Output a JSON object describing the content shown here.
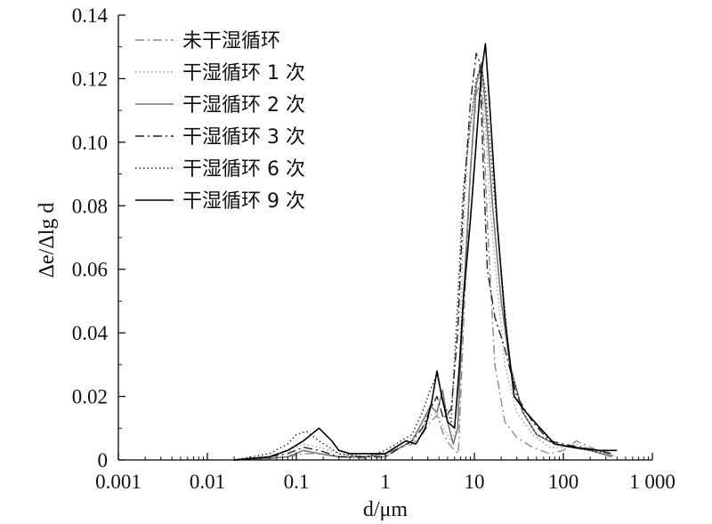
{
  "chart_data": {
    "type": "line",
    "title": "",
    "xlabel": "d/μm",
    "ylabel": "Δe/Δlg d",
    "x_scale": "log",
    "xlim": [
      0.001,
      1000
    ],
    "ylim": [
      0,
      0.14
    ],
    "x_ticks": [
      0.001,
      0.01,
      0.1,
      1,
      10,
      100,
      1000
    ],
    "x_tick_labels": [
      "0.001",
      "0.01",
      "0.1",
      "1",
      "10",
      "100",
      "1 000"
    ],
    "y_ticks": [
      0,
      0.02,
      0.04,
      0.06,
      0.08,
      0.1,
      0.12,
      0.14
    ],
    "y_tick_labels": [
      "0",
      "0.02",
      "0.04",
      "0.06",
      "0.08",
      "0.10",
      "0.12",
      "0.14"
    ],
    "grid": false,
    "legend_position": "top-left",
    "series": [
      {
        "name": "未干湿循环",
        "color": "#8a8a8a",
        "dash": "dashdot",
        "points": [
          [
            0.02,
            0
          ],
          [
            0.05,
            0.0005
          ],
          [
            0.08,
            0.001
          ],
          [
            0.12,
            0.002
          ],
          [
            0.18,
            0.002
          ],
          [
            0.3,
            0.001
          ],
          [
            0.6,
            0.0005
          ],
          [
            1.0,
            0.001
          ],
          [
            1.5,
            0.004
          ],
          [
            2.0,
            0.005
          ],
          [
            2.6,
            0.008
          ],
          [
            3.2,
            0.012
          ],
          [
            3.8,
            0.014
          ],
          [
            4.5,
            0.008
          ],
          [
            5.2,
            0.005
          ],
          [
            6.0,
            0.003
          ],
          [
            6.6,
            0.002
          ],
          [
            7.5,
            0.04
          ],
          [
            9,
            0.09
          ],
          [
            10.5,
            0.115
          ],
          [
            12,
            0.12
          ],
          [
            14,
            0.075
          ],
          [
            17,
            0.03
          ],
          [
            22,
            0.012
          ],
          [
            30,
            0.007
          ],
          [
            45,
            0.004
          ],
          [
            70,
            0.002
          ],
          [
            100,
            0.003
          ],
          [
            140,
            0.006
          ],
          [
            200,
            0.004
          ],
          [
            300,
            0.002
          ],
          [
            400,
            0.001
          ]
        ]
      },
      {
        "name": "干湿循环 1 次",
        "color": "#999999",
        "dash": "dot",
        "points": [
          [
            0.02,
            0
          ],
          [
            0.05,
            0.001
          ],
          [
            0.08,
            0.003
          ],
          [
            0.12,
            0.005
          ],
          [
            0.18,
            0.004
          ],
          [
            0.3,
            0.002
          ],
          [
            0.6,
            0.001
          ],
          [
            1.0,
            0.002
          ],
          [
            1.5,
            0.005
          ],
          [
            2.0,
            0.007
          ],
          [
            2.6,
            0.01
          ],
          [
            3.2,
            0.014
          ],
          [
            3.8,
            0.015
          ],
          [
            4.5,
            0.01
          ],
          [
            5.5,
            0.006
          ],
          [
            6.5,
            0.01
          ],
          [
            7.5,
            0.07
          ],
          [
            8.5,
            0.1
          ],
          [
            10,
            0.115
          ],
          [
            11.5,
            0.122
          ],
          [
            13,
            0.11
          ],
          [
            15,
            0.08
          ],
          [
            18,
            0.055
          ],
          [
            22,
            0.03
          ],
          [
            30,
            0.015
          ],
          [
            45,
            0.008
          ],
          [
            70,
            0.004
          ],
          [
            100,
            0.004
          ],
          [
            140,
            0.005
          ],
          [
            200,
            0.003
          ],
          [
            300,
            0.002
          ]
        ]
      },
      {
        "name": "干湿循环 2 次",
        "color": "#777777",
        "dash": "solid",
        "points": [
          [
            0.02,
            0
          ],
          [
            0.05,
            0.0005
          ],
          [
            0.08,
            0.001
          ],
          [
            0.12,
            0.003
          ],
          [
            0.18,
            0.002
          ],
          [
            0.3,
            0.001
          ],
          [
            0.6,
            0.001
          ],
          [
            1.0,
            0.002
          ],
          [
            1.5,
            0.004
          ],
          [
            2.0,
            0.006
          ],
          [
            2.6,
            0.012
          ],
          [
            3.2,
            0.017
          ],
          [
            3.8,
            0.015
          ],
          [
            4.4,
            0.022
          ],
          [
            5.0,
            0.012
          ],
          [
            5.8,
            0.005
          ],
          [
            6.5,
            0.01
          ],
          [
            7.5,
            0.05
          ],
          [
            9,
            0.09
          ],
          [
            10.5,
            0.118
          ],
          [
            12,
            0.125
          ],
          [
            13.5,
            0.11
          ],
          [
            16,
            0.08
          ],
          [
            20,
            0.05
          ],
          [
            25,
            0.03
          ],
          [
            35,
            0.015
          ],
          [
            50,
            0.008
          ],
          [
            80,
            0.005
          ],
          [
            120,
            0.004
          ],
          [
            200,
            0.003
          ],
          [
            350,
            0.001
          ]
        ]
      },
      {
        "name": "干湿循环 3 次",
        "color": "#222222",
        "dash": "dashdot",
        "points": [
          [
            0.02,
            0
          ],
          [
            0.05,
            0.001
          ],
          [
            0.08,
            0.002
          ],
          [
            0.12,
            0.004
          ],
          [
            0.18,
            0.003
          ],
          [
            0.3,
            0.001
          ],
          [
            0.6,
            0.001
          ],
          [
            1.0,
            0.001
          ],
          [
            1.5,
            0.004
          ],
          [
            2.0,
            0.006
          ],
          [
            2.6,
            0.01
          ],
          [
            3.2,
            0.016
          ],
          [
            3.8,
            0.02
          ],
          [
            4.5,
            0.013
          ],
          [
            5.5,
            0.016
          ],
          [
            6.5,
            0.04
          ],
          [
            7.5,
            0.08
          ],
          [
            9,
            0.112
          ],
          [
            10.5,
            0.128
          ],
          [
            11.5,
            0.125
          ],
          [
            12.5,
            0.095
          ],
          [
            14,
            0.06
          ],
          [
            17,
            0.045
          ],
          [
            22,
            0.035
          ],
          [
            30,
            0.02
          ],
          [
            45,
            0.012
          ],
          [
            70,
            0.006
          ],
          [
            100,
            0.005
          ],
          [
            150,
            0.004
          ],
          [
            250,
            0.003
          ],
          [
            350,
            0.002
          ]
        ]
      },
      {
        "name": "干湿循环 6 次",
        "color": "#222222",
        "dash": "dot",
        "points": [
          [
            0.02,
            0
          ],
          [
            0.05,
            0.002
          ],
          [
            0.08,
            0.005
          ],
          [
            0.1,
            0.008
          ],
          [
            0.13,
            0.009
          ],
          [
            0.18,
            0.006
          ],
          [
            0.3,
            0.002
          ],
          [
            0.6,
            0.001
          ],
          [
            1.0,
            0.003
          ],
          [
            1.5,
            0.006
          ],
          [
            2.0,
            0.008
          ],
          [
            2.6,
            0.015
          ],
          [
            3.2,
            0.022
          ],
          [
            3.8,
            0.027
          ],
          [
            4.5,
            0.018
          ],
          [
            5.5,
            0.012
          ],
          [
            6.5,
            0.05
          ],
          [
            7.5,
            0.085
          ],
          [
            9,
            0.105
          ],
          [
            10.5,
            0.12
          ],
          [
            12,
            0.124
          ],
          [
            13.5,
            0.115
          ],
          [
            16,
            0.09
          ],
          [
            20,
            0.06
          ],
          [
            25,
            0.03
          ],
          [
            35,
            0.015
          ],
          [
            50,
            0.008
          ],
          [
            80,
            0.005
          ],
          [
            120,
            0.004
          ],
          [
            200,
            0.003
          ],
          [
            350,
            0.002
          ]
        ]
      },
      {
        "name": "干湿循环 9 次",
        "color": "#000000",
        "dash": "solid",
        "points": [
          [
            0.02,
            0
          ],
          [
            0.05,
            0.001
          ],
          [
            0.08,
            0.003
          ],
          [
            0.12,
            0.006
          ],
          [
            0.18,
            0.01
          ],
          [
            0.25,
            0.006
          ],
          [
            0.3,
            0.003
          ],
          [
            0.4,
            0.002
          ],
          [
            0.6,
            0.002
          ],
          [
            1.0,
            0.002
          ],
          [
            1.3,
            0.004
          ],
          [
            1.7,
            0.006
          ],
          [
            2.2,
            0.005
          ],
          [
            2.8,
            0.01
          ],
          [
            3.3,
            0.018
          ],
          [
            3.8,
            0.028
          ],
          [
            4.3,
            0.02
          ],
          [
            5.0,
            0.012
          ],
          [
            6.0,
            0.01
          ],
          [
            6.8,
            0.03
          ],
          [
            7.5,
            0.05
          ],
          [
            9,
            0.075
          ],
          [
            10.5,
            0.1
          ],
          [
            12,
            0.122
          ],
          [
            13.3,
            0.131
          ],
          [
            15,
            0.11
          ],
          [
            18,
            0.075
          ],
          [
            22,
            0.045
          ],
          [
            28,
            0.02
          ],
          [
            38,
            0.015
          ],
          [
            55,
            0.01
          ],
          [
            80,
            0.005
          ],
          [
            130,
            0.004
          ],
          [
            250,
            0.003
          ],
          [
            400,
            0.003
          ]
        ]
      }
    ]
  }
}
